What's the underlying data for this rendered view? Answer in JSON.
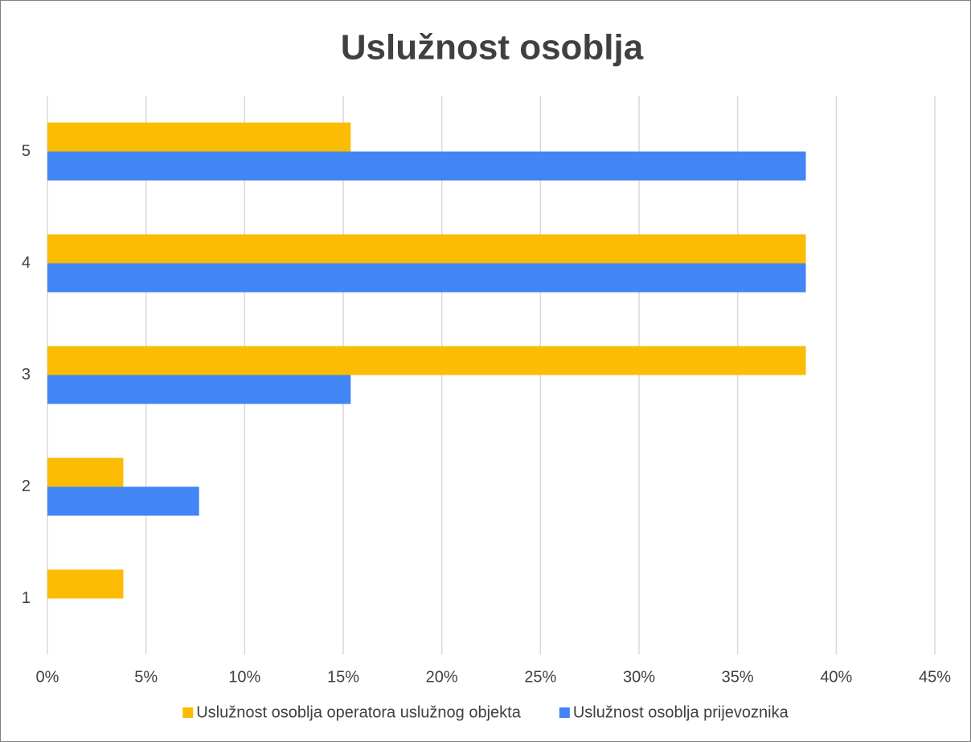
{
  "chart_data": {
    "type": "barh",
    "title": "Uslužnost osoblja",
    "categories": [
      "1",
      "2",
      "3",
      "4",
      "5"
    ],
    "series": [
      {
        "name": "Uslužnost osoblja operatora uslužnog objekta",
        "color": "#fbbc04",
        "values": [
          3.85,
          3.85,
          38.46,
          38.46,
          15.38
        ]
      },
      {
        "name": "Uslužnost osoblja prijevoznika",
        "color": "#4285f4",
        "values": [
          0,
          7.69,
          15.38,
          38.46,
          38.46
        ]
      }
    ],
    "xlim": [
      0,
      45
    ],
    "xticks": [
      {
        "value": 0,
        "label": "0%"
      },
      {
        "value": 5,
        "label": "5%"
      },
      {
        "value": 10,
        "label": "10%"
      },
      {
        "value": 15,
        "label": "15%"
      },
      {
        "value": 20,
        "label": "20%"
      },
      {
        "value": 25,
        "label": "25%"
      },
      {
        "value": 30,
        "label": "30%"
      },
      {
        "value": 35,
        "label": "35%"
      },
      {
        "value": 40,
        "label": "40%"
      },
      {
        "value": 45,
        "label": "45%"
      }
    ],
    "grid": true,
    "legend": "bottom"
  }
}
